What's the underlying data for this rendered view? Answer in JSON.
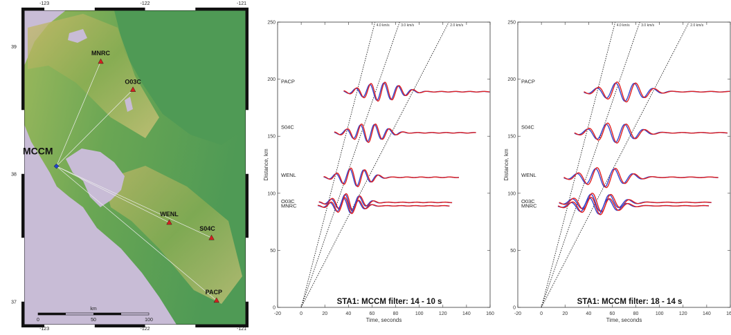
{
  "map": {
    "lon_ticks_top": [
      "-123",
      "-122",
      "-121"
    ],
    "lon_ticks_bottom": [
      "-123",
      "-122",
      "-121"
    ],
    "lat_ticks": [
      "39",
      "38",
      "37"
    ],
    "event_label": "MCCM",
    "stations": [
      {
        "code": "MNRC",
        "lon": -122.44,
        "lat": 38.88
      },
      {
        "code": "O03C",
        "lon": -122.12,
        "lat": 38.66
      },
      {
        "code": "WENL",
        "lon": -121.76,
        "lat": 37.62
      },
      {
        "code": "S04C",
        "lon": -121.34,
        "lat": 37.5
      },
      {
        "code": "PACP",
        "lon": -121.29,
        "lat": 37.01
      }
    ],
    "event": {
      "lon": -122.88,
      "lat": 38.06
    },
    "scalebar": {
      "title": "km",
      "labels": [
        "0",
        "50",
        "100"
      ]
    },
    "colors": {
      "water": "#c8bcd6",
      "land": "#5ea45a",
      "event": "#2244cc",
      "station": "#d42020"
    }
  },
  "chart_data": [
    {
      "type": "line",
      "title": "STA1: MCCM filter: 14 - 10 s",
      "xlabel": "Time, seconds",
      "ylabel": "Distance, km",
      "xlim": [
        -20,
        160
      ],
      "ylim": [
        0,
        250
      ],
      "xticks": [
        "-20",
        "0",
        "20",
        "40",
        "60",
        "80",
        "100",
        "120",
        "140",
        "160"
      ],
      "yticks": [
        "0",
        "50",
        "100",
        "150",
        "200",
        "250"
      ],
      "grid": false,
      "reference_lines": [
        {
          "label": "4.0 km/s",
          "velocity": 4.0
        },
        {
          "label": "3.0 km/s",
          "velocity": 3.0
        },
        {
          "label": "2.0 km/s",
          "velocity": 2.0
        }
      ],
      "traces": [
        {
          "station": "PACP",
          "distance": 189,
          "label_distance": 198,
          "start": 44,
          "end": 92,
          "period": 12,
          "amplitude": 14
        },
        {
          "station": "S04C",
          "distance": 153,
          "label_distance": 158,
          "start": 36,
          "end": 78,
          "period": 12,
          "amplitude": 14
        },
        {
          "station": "WENL",
          "distance": 114,
          "label_distance": 116,
          "start": 27,
          "end": 64,
          "period": 12,
          "amplitude": 14
        },
        {
          "station": "O03C",
          "distance": 92,
          "label_distance": 93,
          "start": 23,
          "end": 58,
          "period": 12,
          "amplitude": 13
        },
        {
          "station": "MNRC",
          "distance": 89,
          "label_distance": 89,
          "start": 22,
          "end": 56,
          "period": 12,
          "amplitude": 12
        }
      ],
      "series_colors": {
        "observed": "#3344cc",
        "synthetic": "#e02020"
      }
    },
    {
      "type": "line",
      "title": "STA1: MCCM filter: 18 - 14 s",
      "xlabel": "Time, seconds",
      "ylabel": "Distance, km",
      "xlim": [
        -20,
        160
      ],
      "ylim": [
        0,
        250
      ],
      "xticks": [
        "-20",
        "0",
        "20",
        "40",
        "60",
        "80",
        "100",
        "120",
        "140",
        "160"
      ],
      "yticks": [
        "0",
        "50",
        "100",
        "150",
        "200",
        "250"
      ],
      "grid": false,
      "reference_lines": [
        {
          "label": "4.0 km/s",
          "velocity": 4.0
        },
        {
          "label": "3.0 km/s",
          "velocity": 3.0
        },
        {
          "label": "2.0 km/s",
          "velocity": 2.0
        }
      ],
      "traces": [
        {
          "station": "PACP",
          "distance": 189,
          "label_distance": 198,
          "start": 44,
          "end": 96,
          "period": 16,
          "amplitude": 15
        },
        {
          "station": "S04C",
          "distance": 153,
          "label_distance": 158,
          "start": 36,
          "end": 88,
          "period": 16,
          "amplitude": 15
        },
        {
          "station": "WENL",
          "distance": 114,
          "label_distance": 116,
          "start": 27,
          "end": 80,
          "period": 16,
          "amplitude": 15
        },
        {
          "station": "O03C",
          "distance": 92,
          "label_distance": 93,
          "start": 23,
          "end": 74,
          "period": 16,
          "amplitude": 14
        },
        {
          "station": "MNRC",
          "distance": 89,
          "label_distance": 89,
          "start": 22,
          "end": 72,
          "period": 16,
          "amplitude": 13
        }
      ],
      "series_colors": {
        "observed": "#3344cc",
        "synthetic": "#e02020"
      }
    }
  ]
}
